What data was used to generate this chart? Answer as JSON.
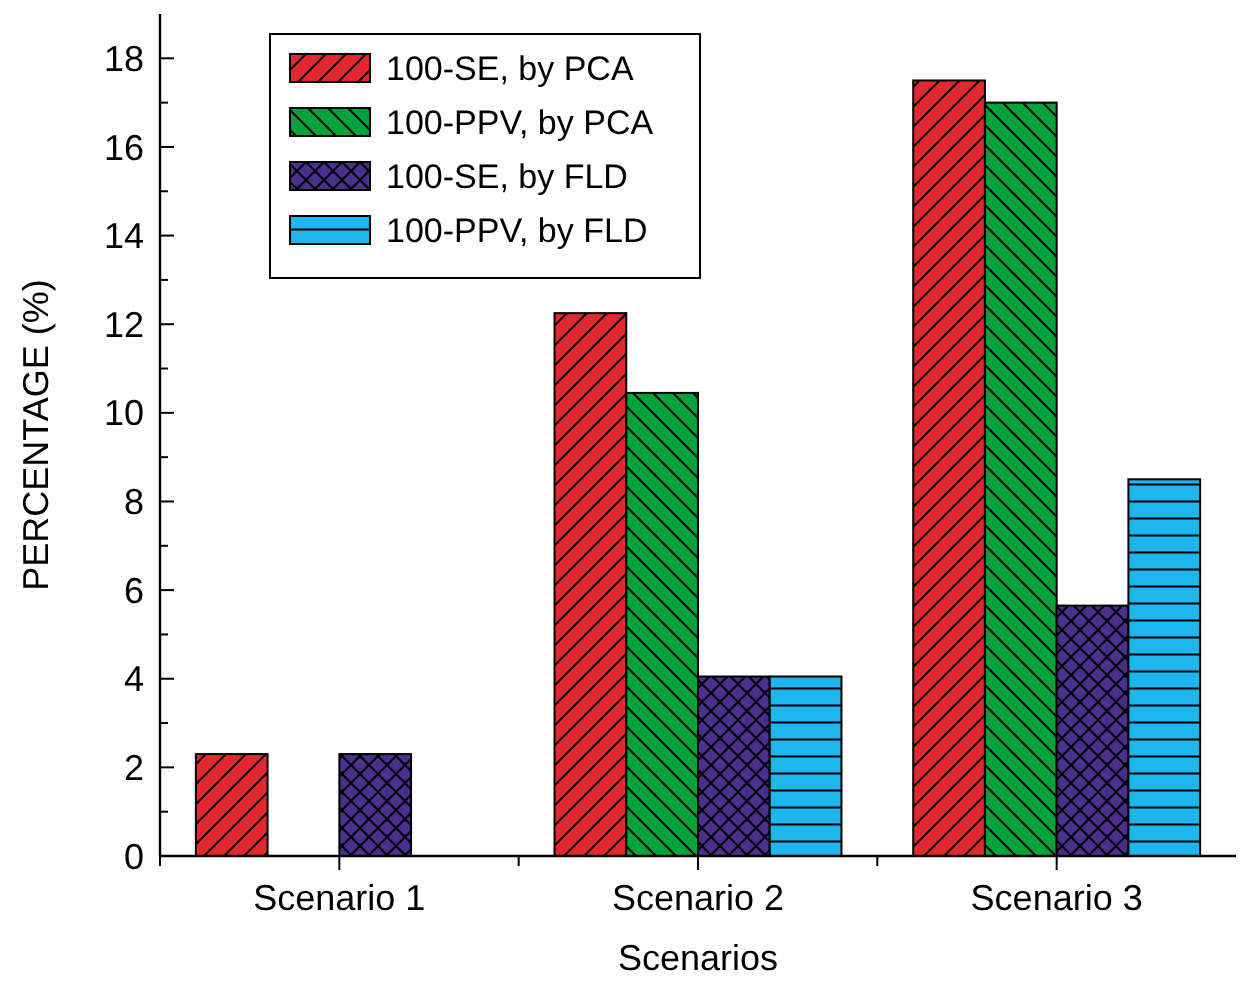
{
  "chart_data": {
    "type": "bar",
    "xlabel": "Scenarios",
    "ylabel": "PERCENTAGE  (%)",
    "categories": [
      "Scenario 1",
      "Scenario 2",
      "Scenario 3"
    ],
    "series": [
      {
        "name": "100-SE, by PCA",
        "color": "#e3282f",
        "values": [
          2.3,
          12.25,
          17.5
        ]
      },
      {
        "name": "100-PPV, by PCA",
        "color": "#00a23a",
        "values": [
          null,
          10.45,
          17.0
        ]
      },
      {
        "name": "100-SE, by FLD",
        "color": "#4a2f8e",
        "values": [
          2.3,
          4.05,
          5.65
        ]
      },
      {
        "name": "100-PPV, by FLD",
        "color": "#1eb6ee",
        "values": [
          null,
          4.05,
          8.5
        ]
      }
    ],
    "ylim": [
      0,
      19
    ],
    "yticks": [
      0,
      {
        "value": 1,
        "label": null
      },
      2,
      {
        "value": 3,
        "label": null
      },
      4,
      {
        "value": 5,
        "label": null
      },
      6,
      {
        "value": 7,
        "label": null
      },
      8,
      {
        "value": 9,
        "label": null
      },
      10,
      {
        "value": 11,
        "label": null
      },
      12,
      {
        "value": 13,
        "label": null
      },
      14,
      {
        "value": 15,
        "label": null
      },
      16,
      {
        "value": 17,
        "label": null
      },
      18
    ],
    "legend": "top left",
    "grid": false
  }
}
